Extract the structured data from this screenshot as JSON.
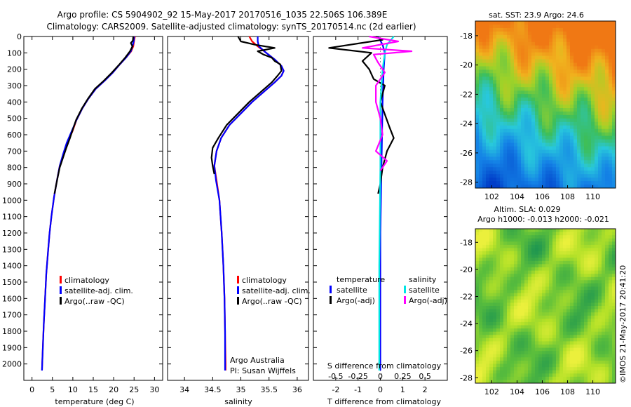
{
  "header": {
    "line1": "Argo profile: CS 5904902_92 15-May-2017 20170516_1035 22.506S 106.389E",
    "line2": "Climatology: CARS2009. Satellite-adjusted climatology: synTS_20170514.nc (2d earlier)"
  },
  "colors": {
    "climatology": "#ff0000",
    "satellite": "#0000ff",
    "argo": "#000000",
    "sal_satellite": "#00e5e5",
    "sal_argo": "#ff00ff"
  },
  "chart_data": [
    {
      "id": "temperature",
      "type": "line",
      "xlabel": "temperature (deg C)",
      "ylabel": "",
      "xlim": [
        -2,
        32
      ],
      "ylim": [
        2100,
        0
      ],
      "xticks": [
        0,
        5,
        10,
        15,
        20,
        25,
        30
      ],
      "yticks": [
        0,
        100,
        200,
        300,
        400,
        500,
        600,
        700,
        800,
        900,
        1000,
        1100,
        1200,
        1300,
        1400,
        1500,
        1600,
        1700,
        1800,
        1900,
        2000
      ],
      "legend": [
        "climatology",
        "satellite-adj. clim.",
        "Argo(..raw -QC)"
      ],
      "legend_position": "lower-center",
      "series": [
        {
          "name": "climatology",
          "color": "#ff0000",
          "points": [
            [
              25.2,
              0
            ],
            [
              25.0,
              30
            ],
            [
              24.8,
              60
            ],
            [
              24.3,
              90
            ],
            [
              23.0,
              130
            ],
            [
              21.5,
              170
            ],
            [
              19.8,
              220
            ],
            [
              17.8,
              270
            ],
            [
              15.6,
              320
            ],
            [
              13.8,
              380
            ],
            [
              12.3,
              440
            ],
            [
              10.9,
              510
            ],
            [
              9.9,
              580
            ],
            [
              8.6,
              650
            ],
            [
              7.7,
              720
            ],
            [
              6.8,
              790
            ],
            [
              6.1,
              880
            ],
            [
              5.4,
              980
            ],
            [
              4.8,
              1090
            ],
            [
              4.3,
              1200
            ],
            [
              3.9,
              1320
            ],
            [
              3.5,
              1450
            ],
            [
              3.2,
              1600
            ],
            [
              2.9,
              1750
            ],
            [
              2.65,
              1900
            ],
            [
              2.5,
              2000
            ],
            [
              2.45,
              2040
            ]
          ]
        },
        {
          "name": "satellite-adj. clim.",
          "color": "#0000ff",
          "points": [
            [
              25.0,
              0
            ],
            [
              24.9,
              30
            ],
            [
              24.6,
              60
            ],
            [
              24.2,
              90
            ],
            [
              23.0,
              130
            ],
            [
              21.5,
              170
            ],
            [
              19.8,
              220
            ],
            [
              17.8,
              270
            ],
            [
              15.6,
              320
            ],
            [
              13.8,
              380
            ],
            [
              12.3,
              440
            ],
            [
              10.9,
              510
            ],
            [
              9.7,
              580
            ],
            [
              8.5,
              650
            ],
            [
              7.6,
              720
            ],
            [
              6.8,
              790
            ],
            [
              6.1,
              880
            ],
            [
              5.4,
              980
            ],
            [
              4.8,
              1090
            ],
            [
              4.3,
              1200
            ],
            [
              3.9,
              1320
            ],
            [
              3.5,
              1450
            ],
            [
              3.2,
              1600
            ],
            [
              2.9,
              1750
            ],
            [
              2.65,
              1900
            ],
            [
              2.5,
              2000
            ],
            [
              2.45,
              2040
            ]
          ]
        },
        {
          "name": "Argo(..raw -QC)",
          "color": "#000000",
          "points": [
            [
              24.8,
              0
            ],
            [
              24.7,
              25
            ],
            [
              24.2,
              40
            ],
            [
              24.6,
              60
            ],
            [
              24.0,
              90
            ],
            [
              22.8,
              130
            ],
            [
              21.4,
              170
            ],
            [
              19.6,
              220
            ],
            [
              17.6,
              270
            ],
            [
              15.4,
              320
            ],
            [
              13.7,
              380
            ],
            [
              12.2,
              440
            ],
            [
              10.8,
              510
            ],
            [
              10.1,
              560
            ],
            [
              9.3,
              620
            ],
            [
              8.4,
              680
            ],
            [
              7.6,
              740
            ],
            [
              6.8,
              800
            ],
            [
              6.2,
              870
            ],
            [
              5.5,
              960
            ]
          ]
        }
      ]
    },
    {
      "id": "salinity",
      "type": "line",
      "xlabel": "salinity",
      "ylabel": "",
      "xlim": [
        33.7,
        36.2
      ],
      "ylim": [
        2100,
        0
      ],
      "xticks": [
        34,
        34.5,
        35,
        35.5,
        36
      ],
      "legend": [
        "climatology",
        "satellite-adj. clim.",
        "Argo(..raw -QC)"
      ],
      "legend_position": "lower-center",
      "annotation": [
        "Argo Australia",
        "PI: Susan Wijffels"
      ],
      "series": [
        {
          "name": "climatology",
          "color": "#ff0000",
          "points": [
            [
              35.15,
              0
            ],
            [
              35.2,
              30
            ],
            [
              35.3,
              60
            ],
            [
              35.45,
              100
            ],
            [
              35.6,
              140
            ],
            [
              35.72,
              180
            ],
            [
              35.76,
              210
            ],
            [
              35.72,
              240
            ],
            [
              35.6,
              280
            ],
            [
              35.4,
              340
            ],
            [
              35.2,
              400
            ],
            [
              35.0,
              470
            ],
            [
              34.8,
              540
            ],
            [
              34.65,
              620
            ],
            [
              34.57,
              700
            ],
            [
              34.53,
              790
            ],
            [
              34.57,
              880
            ],
            [
              34.62,
              1000
            ],
            [
              34.66,
              1200
            ],
            [
              34.69,
              1400
            ],
            [
              34.71,
              1600
            ],
            [
              34.72,
              1800
            ],
            [
              34.73,
              2000
            ],
            [
              34.73,
              2040
            ]
          ]
        },
        {
          "name": "satellite-adj. clim.",
          "color": "#0000ff",
          "points": [
            [
              35.3,
              0
            ],
            [
              35.3,
              30
            ],
            [
              35.32,
              60
            ],
            [
              35.45,
              100
            ],
            [
              35.6,
              140
            ],
            [
              35.72,
              180
            ],
            [
              35.76,
              210
            ],
            [
              35.72,
              240
            ],
            [
              35.6,
              280
            ],
            [
              35.4,
              340
            ],
            [
              35.2,
              400
            ],
            [
              35.0,
              470
            ],
            [
              34.8,
              540
            ],
            [
              34.65,
              620
            ],
            [
              34.57,
              700
            ],
            [
              34.53,
              790
            ],
            [
              34.56,
              880
            ],
            [
              34.62,
              1000
            ],
            [
              34.66,
              1200
            ],
            [
              34.69,
              1400
            ],
            [
              34.71,
              1600
            ],
            [
              34.72,
              1800
            ],
            [
              34.72,
              2000
            ],
            [
              34.72,
              2040
            ]
          ]
        },
        {
          "name": "Argo(..raw -QC)",
          "color": "#000000",
          "points": [
            [
              34.95,
              0
            ],
            [
              35.0,
              30
            ],
            [
              35.25,
              50
            ],
            [
              35.6,
              70
            ],
            [
              35.3,
              90
            ],
            [
              35.4,
              110
            ],
            [
              35.55,
              130
            ],
            [
              35.6,
              150
            ],
            [
              35.7,
              170
            ],
            [
              35.72,
              210
            ],
            [
              35.65,
              240
            ],
            [
              35.55,
              280
            ],
            [
              35.35,
              340
            ],
            [
              35.15,
              400
            ],
            [
              34.95,
              470
            ],
            [
              34.75,
              540
            ],
            [
              34.6,
              620
            ],
            [
              34.5,
              680
            ],
            [
              34.48,
              740
            ],
            [
              34.5,
              790
            ],
            [
              34.53,
              840
            ]
          ]
        }
      ]
    },
    {
      "id": "difference",
      "type": "line",
      "xlabel": "T difference from climatology",
      "xlabel_top": "S difference from climatology",
      "ylabel": "",
      "xlim": [
        -3,
        3
      ],
      "ylim": [
        2100,
        0
      ],
      "xticks": [
        -2,
        -1,
        0,
        1,
        2
      ],
      "xticks_top": [
        -0.5,
        -0.25,
        0,
        0.25,
        0.5
      ],
      "legend_groups": {
        "temperature": [
          "satellite",
          "Argo(-adj)"
        ],
        "salinity": [
          "satellite",
          "Argo(-adj)"
        ]
      },
      "legend_position": "lower-center",
      "series": [
        {
          "name": "T satellite",
          "color": "#0000ff",
          "points": [
            [
              -0.1,
              0
            ],
            [
              0.1,
              50
            ],
            [
              0.2,
              100
            ],
            [
              0.15,
              200
            ],
            [
              0.1,
              400
            ],
            [
              0.05,
              800
            ],
            [
              0.0,
              1200
            ],
            [
              0.0,
              2040
            ]
          ]
        },
        {
          "name": "T Argo(-adj)",
          "color": "#000000",
          "points": [
            [
              -0.2,
              0
            ],
            [
              0.1,
              20
            ],
            [
              -2.3,
              70
            ],
            [
              -0.4,
              100
            ],
            [
              -0.8,
              150
            ],
            [
              -0.5,
              200
            ],
            [
              -0.3,
              260
            ],
            [
              0.2,
              300
            ],
            [
              0.0,
              400
            ],
            [
              0.4,
              550
            ],
            [
              0.6,
              620
            ],
            [
              0.3,
              700
            ],
            [
              0.1,
              800
            ],
            [
              0.0,
              900
            ],
            [
              -0.1,
              960
            ]
          ]
        },
        {
          "name": "S satellite",
          "color": "#00e5e5",
          "points": [
            [
              0.6,
              0
            ],
            [
              0.3,
              50
            ],
            [
              0.2,
              100
            ],
            [
              0.1,
              200
            ],
            [
              0.0,
              400
            ],
            [
              0.0,
              800
            ],
            [
              -0.05,
              1400
            ],
            [
              -0.05,
              2040
            ]
          ]
        },
        {
          "name": "S Argo(-adj)",
          "color": "#ff00ff",
          "points": [
            [
              -0.5,
              0
            ],
            [
              0.8,
              30
            ],
            [
              -0.8,
              70
            ],
            [
              1.4,
              90
            ],
            [
              -0.3,
              110
            ],
            [
              -0.1,
              160
            ],
            [
              0.2,
              220
            ],
            [
              -0.2,
              300
            ],
            [
              -0.2,
              400
            ],
            [
              0.0,
              500
            ],
            [
              0.1,
              600
            ],
            [
              -0.2,
              700
            ],
            [
              0.3,
              760
            ],
            [
              0.0,
              820
            ]
          ]
        }
      ]
    },
    {
      "id": "sst_map",
      "type": "heatmap",
      "title": "sat. SST: 23.9 Argo: 24.6",
      "xticks": [
        102,
        104,
        106,
        108,
        110
      ],
      "yticks": [
        -18,
        -20,
        -22,
        -24,
        -26,
        -28
      ]
    },
    {
      "id": "sla_map",
      "type": "heatmap",
      "title_lines": [
        "Altim. SLA: 0.029",
        "Argo h1000: -0.013 h2000: -0.021"
      ],
      "xticks": [
        102,
        104,
        106,
        108,
        110
      ],
      "yticks": [
        -18,
        -20,
        -22,
        -24,
        -26,
        -28
      ]
    }
  ],
  "credit": "©IMOS 21-May-2017 20:41:20"
}
